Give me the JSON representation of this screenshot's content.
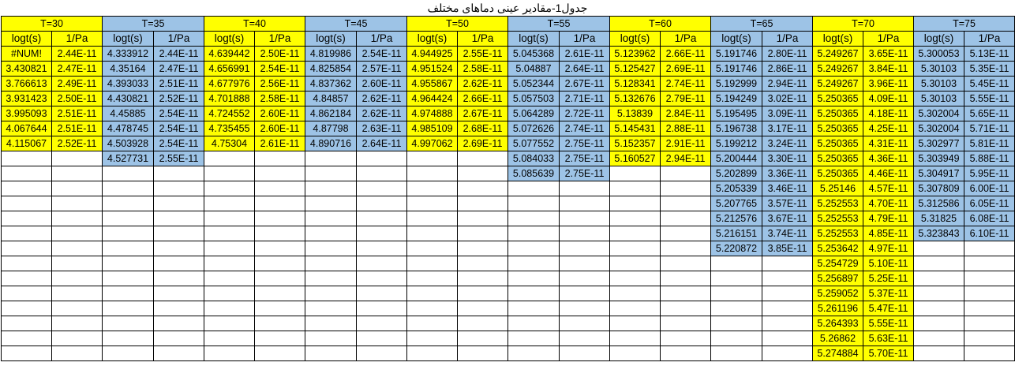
{
  "title": "جدول1-مقادیر عینی دماهای مختلف",
  "groups": [
    {
      "label": "T=30",
      "color": "#ffff00",
      "rows": [
        [
          "#NUM!",
          "2.44E-11"
        ],
        [
          "3.430821",
          "2.47E-11"
        ],
        [
          "3.766613",
          "2.49E-11"
        ],
        [
          "3.931423",
          "2.50E-11"
        ],
        [
          "3.995093",
          "2.51E-11"
        ],
        [
          "4.067644",
          "2.51E-11"
        ],
        [
          "4.115067",
          "2.52E-11"
        ]
      ]
    },
    {
      "label": "T=35",
      "color": "#9dc3e6",
      "rows": [
        [
          "4.333912",
          "2.44E-11"
        ],
        [
          "4.35164",
          "2.47E-11"
        ],
        [
          "4.393033",
          "2.51E-11"
        ],
        [
          "4.430821",
          "2.52E-11"
        ],
        [
          "4.45885",
          "2.54E-11"
        ],
        [
          "4.478745",
          "2.54E-11"
        ],
        [
          "4.503928",
          "2.54E-11"
        ],
        [
          "4.527731",
          "2.55E-11"
        ]
      ]
    },
    {
      "label": "T=40",
      "color": "#ffff00",
      "rows": [
        [
          "4.639442",
          "2.50E-11"
        ],
        [
          "4.656991",
          "2.54E-11"
        ],
        [
          "4.677976",
          "2.56E-11"
        ],
        [
          "4.701888",
          "2.58E-11"
        ],
        [
          "4.724552",
          "2.60E-11"
        ],
        [
          "4.735455",
          "2.60E-11"
        ],
        [
          "4.75304",
          "2.61E-11"
        ]
      ]
    },
    {
      "label": "T=45",
      "color": "#9dc3e6",
      "rows": [
        [
          "4.819986",
          "2.54E-11"
        ],
        [
          "4.825854",
          "2.57E-11"
        ],
        [
          "4.837362",
          "2.60E-11"
        ],
        [
          "4.84857",
          "2.62E-11"
        ],
        [
          "4.862184",
          "2.62E-11"
        ],
        [
          "4.87798",
          "2.63E-11"
        ],
        [
          "4.890716",
          "2.64E-11"
        ]
      ]
    },
    {
      "label": "T=50",
      "color": "#ffff00",
      "rows": [
        [
          "4.944925",
          "2.55E-11"
        ],
        [
          "4.951524",
          "2.58E-11"
        ],
        [
          "4.955867",
          "2.62E-11"
        ],
        [
          "4.964424",
          "2.66E-11"
        ],
        [
          "4.974888",
          "2.67E-11"
        ],
        [
          "4.985109",
          "2.68E-11"
        ],
        [
          "4.997062",
          "2.69E-11"
        ]
      ]
    },
    {
      "label": "T=55",
      "color": "#9dc3e6",
      "rows": [
        [
          "5.045368",
          "2.61E-11"
        ],
        [
          "5.04887",
          "2.64E-11"
        ],
        [
          "5.052344",
          "2.67E-11"
        ],
        [
          "5.057503",
          "2.71E-11"
        ],
        [
          "5.064289",
          "2.72E-11"
        ],
        [
          "5.072626",
          "2.74E-11"
        ],
        [
          "5.077552",
          "2.75E-11"
        ],
        [
          "5.084033",
          "2.75E-11"
        ],
        [
          "5.085639",
          "2.75E-11"
        ]
      ]
    },
    {
      "label": "T=60",
      "color": "#ffff00",
      "rows": [
        [
          "5.123962",
          "2.66E-11"
        ],
        [
          "5.125427",
          "2.69E-11"
        ],
        [
          "5.128341",
          "2.74E-11"
        ],
        [
          "5.132676",
          "2.79E-11"
        ],
        [
          "5.13839",
          "2.84E-11"
        ],
        [
          "5.145431",
          "2.88E-11"
        ],
        [
          "5.152357",
          "2.91E-11"
        ],
        [
          "5.160527",
          "2.94E-11"
        ]
      ]
    },
    {
      "label": "T=65",
      "color": "#9dc3e6",
      "rows": [
        [
          "5.191746",
          "2.80E-11"
        ],
        [
          "5.191746",
          "2.86E-11"
        ],
        [
          "5.192999",
          "2.94E-11"
        ],
        [
          "5.194249",
          "3.02E-11"
        ],
        [
          "5.195495",
          "3.09E-11"
        ],
        [
          "5.196738",
          "3.17E-11"
        ],
        [
          "5.199212",
          "3.24E-11"
        ],
        [
          "5.200444",
          "3.30E-11"
        ],
        [
          "5.202899",
          "3.36E-11"
        ],
        [
          "5.205339",
          "3.46E-11"
        ],
        [
          "5.207765",
          "3.57E-11"
        ],
        [
          "5.212576",
          "3.67E-11"
        ],
        [
          "5.216151",
          "3.74E-11"
        ],
        [
          "5.220872",
          "3.85E-11"
        ]
      ]
    },
    {
      "label": "T=70",
      "color": "#ffff00",
      "rows": [
        [
          "5.249267",
          "3.65E-11"
        ],
        [
          "5.249267",
          "3.84E-11"
        ],
        [
          "5.249267",
          "3.96E-11"
        ],
        [
          "5.250365",
          "4.09E-11"
        ],
        [
          "5.250365",
          "4.18E-11"
        ],
        [
          "5.250365",
          "4.25E-11"
        ],
        [
          "5.250365",
          "4.31E-11"
        ],
        [
          "5.250365",
          "4.36E-11"
        ],
        [
          "5.250365",
          "4.46E-11"
        ],
        [
          "5.25146",
          "4.57E-11"
        ],
        [
          "5.252553",
          "4.70E-11"
        ],
        [
          "5.252553",
          "4.79E-11"
        ],
        [
          "5.252553",
          "4.85E-11"
        ],
        [
          "5.253642",
          "4.97E-11"
        ],
        [
          "5.254729",
          "5.10E-11"
        ],
        [
          "5.256897",
          "5.25E-11"
        ],
        [
          "5.259052",
          "5.37E-11"
        ],
        [
          "5.261196",
          "5.47E-11"
        ],
        [
          "5.264393",
          "5.55E-11"
        ],
        [
          "5.26862",
          "5.63E-11"
        ],
        [
          "5.274884",
          "5.70E-11"
        ]
      ]
    },
    {
      "label": "T=75",
      "color": "#9dc3e6",
      "rows": [
        [
          "5.300053",
          "5.13E-11"
        ],
        [
          "5.30103",
          "5.35E-11"
        ],
        [
          "5.30103",
          "5.45E-11"
        ],
        [
          "5.30103",
          "5.55E-11"
        ],
        [
          "5.302004",
          "5.65E-11"
        ],
        [
          "5.302004",
          "5.71E-11"
        ],
        [
          "5.302977",
          "5.81E-11"
        ],
        [
          "5.303949",
          "5.88E-11"
        ],
        [
          "5.304917",
          "5.95E-11"
        ],
        [
          "5.307809",
          "6.00E-11"
        ],
        [
          "5.312586",
          "6.05E-11"
        ],
        [
          "5.31825",
          "6.08E-11"
        ],
        [
          "5.323843",
          "6.10E-11"
        ]
      ]
    }
  ],
  "sub_headers": {
    "col1": "logt(s)",
    "col2": "1/Pa"
  },
  "total_rows": 21
}
